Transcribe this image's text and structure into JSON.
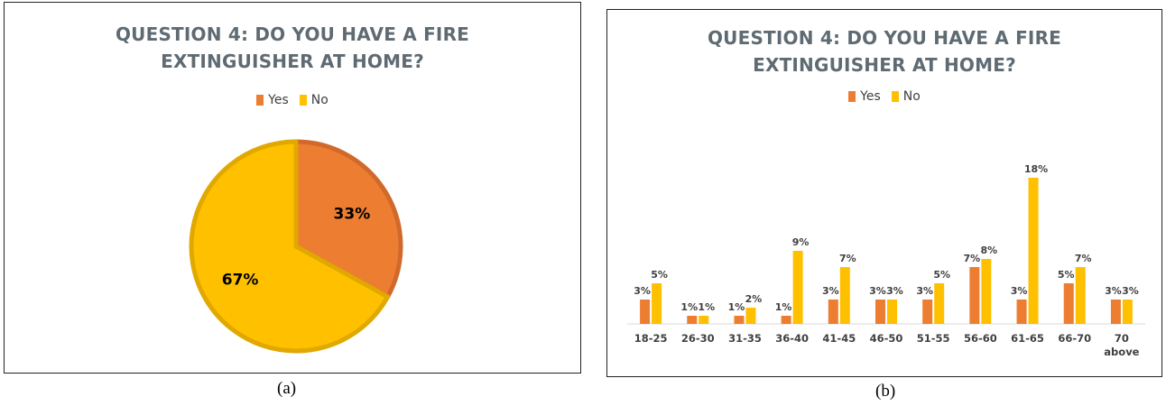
{
  "colors": {
    "yes": "#ED7D31",
    "no": "#FFC000",
    "title": "#5f6b73",
    "axis": "#d9d9d9",
    "text": "#404040"
  },
  "captions": {
    "a": "(a)",
    "b": "(b)"
  },
  "chart_data": [
    {
      "type": "pie",
      "title_lines": [
        "QUESTION 4: DO YOU HAVE A FIRE",
        "EXTINGUISHER AT HOME?"
      ],
      "legend_position": "top",
      "legend": [
        "Yes",
        "No"
      ],
      "slices": [
        {
          "name": "Yes",
          "value": 33,
          "label": "33%"
        },
        {
          "name": "No",
          "value": 67,
          "label": "67%"
        }
      ]
    },
    {
      "type": "bar",
      "title_lines": [
        "QUESTION 4: DO YOU HAVE A FIRE",
        "EXTINGUISHER AT HOME?"
      ],
      "legend_position": "top",
      "legend": [
        "Yes",
        "No"
      ],
      "categories": [
        "18-25",
        "26-30",
        "31-35",
        "36-40",
        "41-45",
        "46-50",
        "51-55",
        "56-60",
        "61-65",
        "66-70",
        "70 above"
      ],
      "series": [
        {
          "name": "Yes",
          "values": [
            3,
            1,
            1,
            1,
            3,
            3,
            3,
            7,
            3,
            5,
            3
          ]
        },
        {
          "name": "No",
          "values": [
            5,
            1,
            2,
            9,
            7,
            3,
            5,
            8,
            18,
            7,
            3
          ]
        }
      ],
      "ylim": [
        0,
        20
      ],
      "grid": false
    }
  ]
}
